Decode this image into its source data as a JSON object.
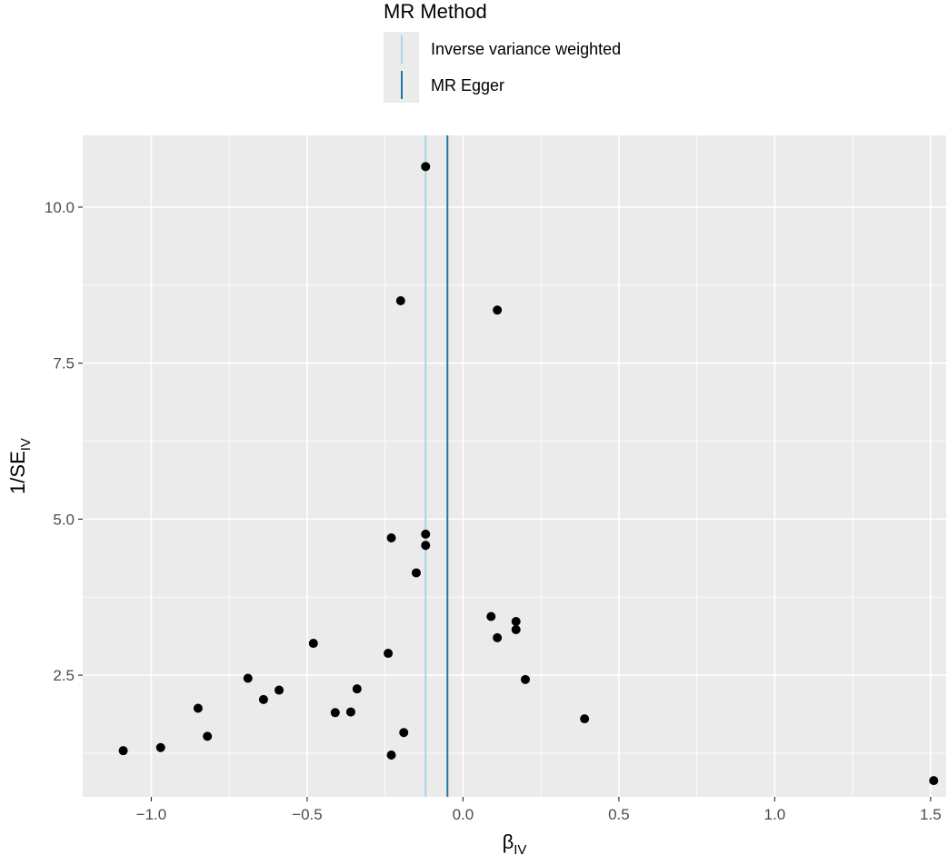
{
  "legend": {
    "title": "MR Method",
    "entries": [
      {
        "label": "Inverse variance weighted",
        "color": "#a6d5ea"
      },
      {
        "label": "MR Egger",
        "color": "#1f78a4"
      }
    ]
  },
  "chart_data": {
    "type": "scatter",
    "xlabel": {
      "main": "β",
      "sub": "IV"
    },
    "ylabel": {
      "main": "1/SE",
      "sub": "IV"
    },
    "xlim": [
      -1.22,
      1.55
    ],
    "ylim": [
      0.55,
      11.15
    ],
    "x_ticks": [
      -1.0,
      -0.5,
      0.0,
      0.5,
      1.0,
      1.5
    ],
    "x_tick_labels": [
      "−1.0",
      "−0.5",
      "0.0",
      "0.5",
      "1.0",
      "1.5"
    ],
    "y_ticks": [
      2.5,
      5.0,
      7.5,
      10.0
    ],
    "y_tick_labels": [
      "2.5",
      "5.0",
      "7.5",
      "10.0"
    ],
    "grid": true,
    "legend_position": "top",
    "panel_background": "#ebebeb",
    "points": [
      {
        "x": -0.12,
        "y": 10.65
      },
      {
        "x": -0.2,
        "y": 8.5
      },
      {
        "x": 0.11,
        "y": 8.35
      },
      {
        "x": -0.12,
        "y": 4.76
      },
      {
        "x": -0.23,
        "y": 4.7
      },
      {
        "x": -0.12,
        "y": 4.58
      },
      {
        "x": -0.15,
        "y": 4.14
      },
      {
        "x": 0.09,
        "y": 3.44
      },
      {
        "x": 0.17,
        "y": 3.36
      },
      {
        "x": 0.17,
        "y": 3.23
      },
      {
        "x": 0.11,
        "y": 3.1
      },
      {
        "x": -0.48,
        "y": 3.01
      },
      {
        "x": -0.24,
        "y": 2.85
      },
      {
        "x": -0.69,
        "y": 2.45
      },
      {
        "x": 0.2,
        "y": 2.43
      },
      {
        "x": -0.34,
        "y": 2.28
      },
      {
        "x": -0.59,
        "y": 2.26
      },
      {
        "x": -0.64,
        "y": 2.11
      },
      {
        "x": -0.85,
        "y": 1.97
      },
      {
        "x": -0.41,
        "y": 1.9
      },
      {
        "x": -0.36,
        "y": 1.91
      },
      {
        "x": 0.39,
        "y": 1.8
      },
      {
        "x": -0.19,
        "y": 1.58
      },
      {
        "x": -0.82,
        "y": 1.52
      },
      {
        "x": -0.97,
        "y": 1.34
      },
      {
        "x": -1.09,
        "y": 1.29
      },
      {
        "x": -0.23,
        "y": 1.22
      },
      {
        "x": 1.51,
        "y": 0.81
      }
    ],
    "vlines": [
      {
        "name": "Inverse variance weighted",
        "x": -0.12,
        "color": "#a6d5ea"
      },
      {
        "name": "MR Egger",
        "x": -0.05,
        "color": "#1f78a4"
      }
    ]
  }
}
